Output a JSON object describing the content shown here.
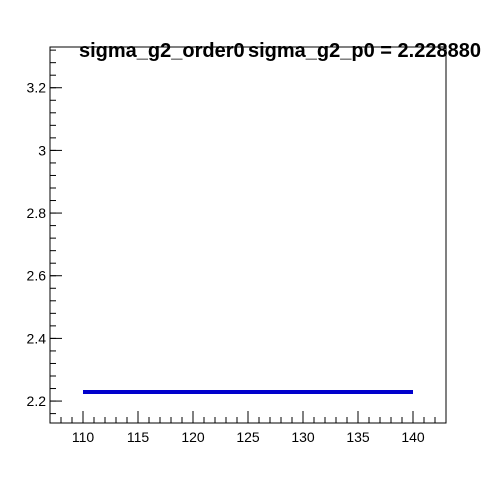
{
  "chart_data": {
    "type": "line",
    "title": "sigma_g2_order0",
    "annotation": "sigma_g2_p0 = 2.228880",
    "xlabel": "",
    "ylabel": "",
    "xlim": [
      107,
      143
    ],
    "ylim": [
      2.13,
      3.33
    ],
    "grid": false,
    "x_ticks": [
      110,
      115,
      120,
      125,
      130,
      135,
      140
    ],
    "y_ticks": [
      2.2,
      2.4,
      2.6,
      2.8,
      3.0,
      3.2
    ],
    "x_tick_labels": [
      "110",
      "115",
      "120",
      "125",
      "130",
      "135",
      "140"
    ],
    "y_tick_labels": [
      "2.2",
      "2.4",
      "2.6",
      "2.8",
      "3",
      "3.2"
    ],
    "series": [
      {
        "x": [
          110,
          140
        ],
        "values": [
          2.22888,
          2.22888
        ],
        "color": "#0000cc"
      }
    ]
  }
}
